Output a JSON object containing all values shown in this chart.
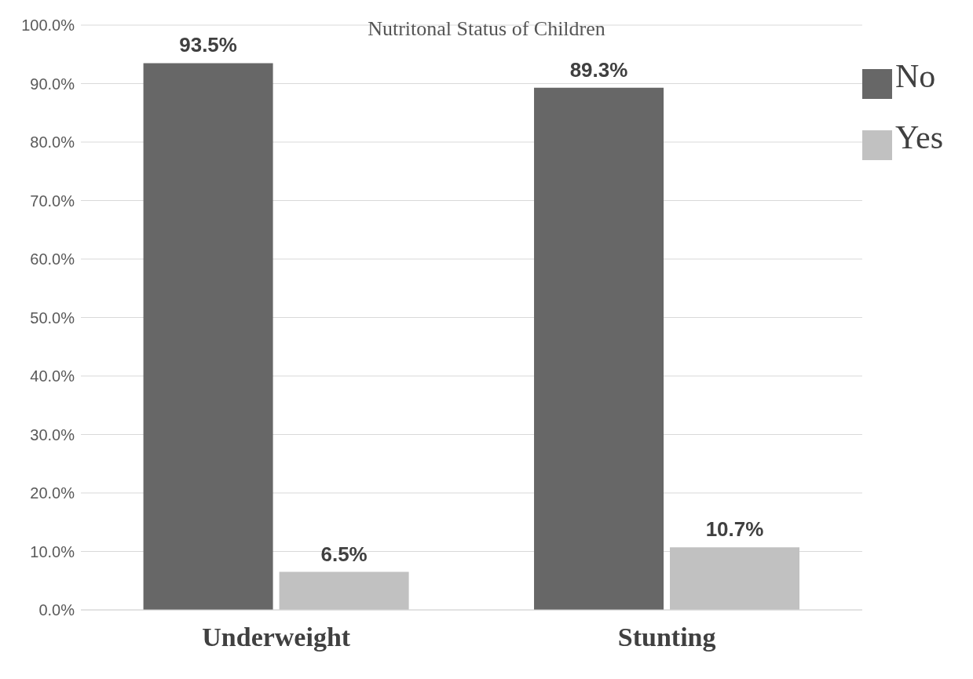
{
  "chart_data": {
    "type": "bar",
    "title": "Nutritonal Status of Children",
    "categories": [
      "Underweight",
      "Stunting"
    ],
    "series": [
      {
        "name": "No",
        "color": "#676767",
        "values": [
          93.5,
          89.3
        ],
        "value_labels": [
          "93.5%",
          "89.3%"
        ]
      },
      {
        "name": "Yes",
        "color": "#c1c1c1",
        "values": [
          6.5,
          10.7
        ],
        "value_labels": [
          "6.5%",
          "10.7%"
        ]
      }
    ],
    "ylim": [
      0,
      100
    ],
    "yticks": [
      {
        "value": 0,
        "label": "0.0%"
      },
      {
        "value": 10,
        "label": "10.0%"
      },
      {
        "value": 20,
        "label": "20.0%"
      },
      {
        "value": 30,
        "label": "30.0%"
      },
      {
        "value": 40,
        "label": "40.0%"
      },
      {
        "value": 50,
        "label": "50.0%"
      },
      {
        "value": 60,
        "label": "60.0%"
      },
      {
        "value": 70,
        "label": "70.0%"
      },
      {
        "value": 80,
        "label": "80.0%"
      },
      {
        "value": 90,
        "label": "90.0%"
      },
      {
        "value": 100,
        "label": "100.0%"
      }
    ],
    "grid": "y",
    "legend": "top right"
  }
}
